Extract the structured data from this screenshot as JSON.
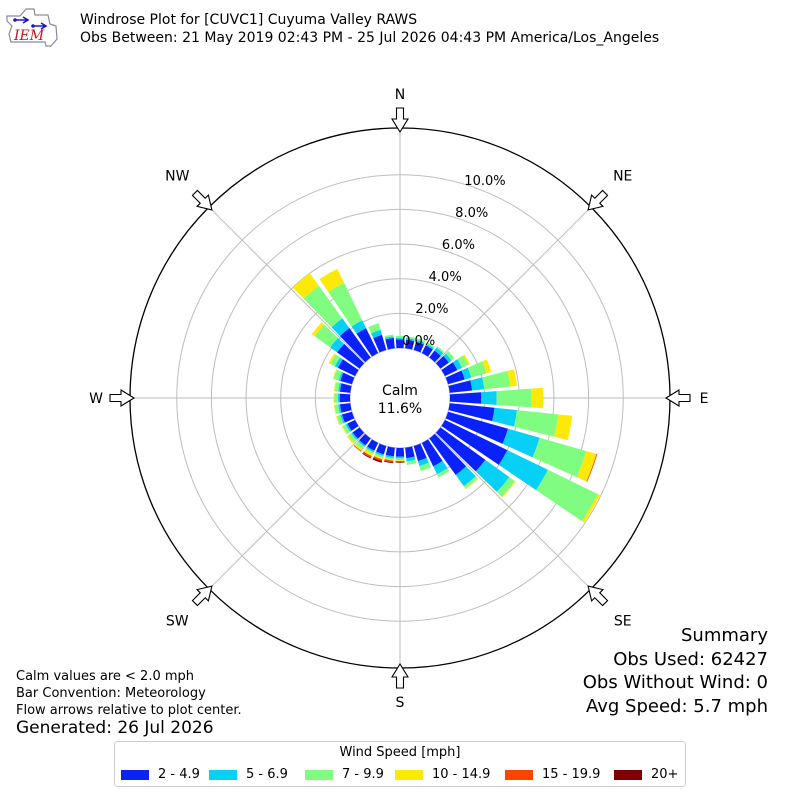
{
  "header": {
    "title": "Windrose Plot for [CUVC1] Cuyuma Valley RAWS",
    "subtitle": "Obs Between: 21 May 2019 02:43 PM - 25 Jul 2026 04:43 PM America/Los_Angeles"
  },
  "logo": {
    "text": "IEM"
  },
  "notes": {
    "calm": "Calm values are < 2.0 mph",
    "bar": "Bar Convention: Meteorology",
    "flow": "Flow arrows relative to plot center."
  },
  "generated": "Generated: 26 Jul 2026",
  "summary": {
    "title": "Summary",
    "obs_used": "Obs Used: 62427",
    "obs_without_wind": "Obs Without Wind: 0",
    "avg_speed": "Avg Speed: 5.7 mph"
  },
  "center": {
    "label": "Calm",
    "value": "11.6%"
  },
  "chart_data": {
    "type": "windrose",
    "title": "Windrose Plot for [CUVC1] Cuyuma Valley RAWS",
    "radial_unit": "%",
    "r_ticks": [
      "0.0%",
      "2.0%",
      "4.0%",
      "6.0%",
      "8.0%",
      "10.0%"
    ],
    "r_max": 12.7,
    "calm_percent": 11.6,
    "directions": [
      "N",
      "NE",
      "E",
      "SE",
      "S",
      "SW",
      "W",
      "NW"
    ],
    "legend_title": "Wind Speed [mph]",
    "bins": [
      {
        "label": "2 - 4.9",
        "color": "#0a22fa"
      },
      {
        "label": "5 - 6.9",
        "color": "#06d0f5"
      },
      {
        "label": "7 - 9.9",
        "color": "#80fd80"
      },
      {
        "label": "10 - 14.9",
        "color": "#fde906"
      },
      {
        "label": "15 - 19.9",
        "color": "#fd4500"
      },
      {
        "label": "20+",
        "color": "#7e0000"
      }
    ],
    "sectors": [
      {
        "dir": 0,
        "values": [
          0.5,
          0.1,
          0.1,
          0,
          0,
          0
        ]
      },
      {
        "dir": 10,
        "values": [
          0.5,
          0.1,
          0.1,
          0,
          0,
          0
        ]
      },
      {
        "dir": 20,
        "values": [
          0.5,
          0.1,
          0.1,
          0,
          0,
          0
        ]
      },
      {
        "dir": 30,
        "values": [
          0.5,
          0.1,
          0.1,
          0,
          0,
          0
        ]
      },
      {
        "dir": 40,
        "values": [
          0.5,
          0.2,
          0.1,
          0,
          0,
          0
        ]
      },
      {
        "dir": 50,
        "values": [
          0.6,
          0.2,
          0.2,
          0,
          0,
          0
        ]
      },
      {
        "dir": 60,
        "values": [
          0.8,
          0.3,
          0.4,
          0.1,
          0,
          0
        ]
      },
      {
        "dir": 70,
        "values": [
          1.0,
          0.4,
          0.9,
          0.3,
          0,
          0
        ]
      },
      {
        "dir": 80,
        "values": [
          1.3,
          0.7,
          1.5,
          0.4,
          0,
          0
        ]
      },
      {
        "dir": 90,
        "values": [
          1.8,
          0.9,
          2.0,
          0.7,
          0,
          0
        ]
      },
      {
        "dir": 100,
        "values": [
          2.6,
          1.3,
          2.4,
          0.8,
          0,
          0
        ]
      },
      {
        "dir": 110,
        "values": [
          3.6,
          1.9,
          2.8,
          0.6,
          0.05,
          0
        ]
      },
      {
        "dir": 120,
        "values": [
          4.0,
          2.6,
          3.2,
          0.15,
          0,
          0
        ]
      },
      {
        "dir": 130,
        "values": [
          3.2,
          1.7,
          0.4,
          0.05,
          0,
          0
        ]
      },
      {
        "dir": 140,
        "values": [
          2.6,
          0.8,
          0.15,
          0.05,
          0,
          0
        ]
      },
      {
        "dir": 150,
        "values": [
          1.5,
          0.5,
          0.2,
          0,
          0,
          0
        ]
      },
      {
        "dir": 160,
        "values": [
          0.9,
          0.3,
          0.3,
          0,
          0,
          0
        ]
      },
      {
        "dir": 170,
        "values": [
          0.6,
          0.2,
          0.2,
          0,
          0,
          0
        ]
      },
      {
        "dir": 180,
        "values": [
          0.5,
          0.1,
          0.1,
          0.05,
          0.05,
          0.05
        ]
      },
      {
        "dir": 190,
        "values": [
          0.5,
          0.1,
          0.1,
          0.05,
          0.1,
          0.05
        ]
      },
      {
        "dir": 200,
        "values": [
          0.5,
          0.1,
          0.1,
          0.1,
          0.1,
          0.1
        ]
      },
      {
        "dir": 210,
        "values": [
          0.5,
          0.1,
          0.1,
          0.15,
          0.1,
          0.05
        ]
      },
      {
        "dir": 220,
        "values": [
          0.5,
          0.1,
          0.2,
          0.1,
          0.05,
          0
        ]
      },
      {
        "dir": 230,
        "values": [
          0.5,
          0.1,
          0.2,
          0.1,
          0,
          0
        ]
      },
      {
        "dir": 240,
        "values": [
          0.5,
          0.1,
          0.2,
          0.05,
          0,
          0
        ]
      },
      {
        "dir": 250,
        "values": [
          0.6,
          0.1,
          0.2,
          0.05,
          0,
          0
        ]
      },
      {
        "dir": 260,
        "values": [
          0.6,
          0.1,
          0.2,
          0.05,
          0,
          0
        ]
      },
      {
        "dir": 270,
        "values": [
          0.6,
          0.1,
          0.2,
          0.05,
          0,
          0
        ]
      },
      {
        "dir": 280,
        "values": [
          0.6,
          0.1,
          0.2,
          0.05,
          0,
          0
        ]
      },
      {
        "dir": 290,
        "values": [
          0.7,
          0.1,
          0.3,
          0.05,
          0,
          0
        ]
      },
      {
        "dir": 300,
        "values": [
          1.1,
          0.2,
          0.3,
          0.1,
          0,
          0
        ]
      },
      {
        "dir": 310,
        "values": [
          1.6,
          0.5,
          1.1,
          0.2,
          0,
          0
        ]
      },
      {
        "dir": 320,
        "values": [
          2.1,
          0.7,
          2.3,
          0.9,
          0,
          0
        ]
      },
      {
        "dir": 330,
        "values": [
          1.6,
          0.5,
          2.4,
          0.9,
          0,
          0
        ]
      },
      {
        "dir": 340,
        "values": [
          0.9,
          0.3,
          0.4,
          0,
          0,
          0
        ]
      },
      {
        "dir": 350,
        "values": [
          0.6,
          0.1,
          0.1,
          0,
          0,
          0
        ]
      }
    ]
  }
}
